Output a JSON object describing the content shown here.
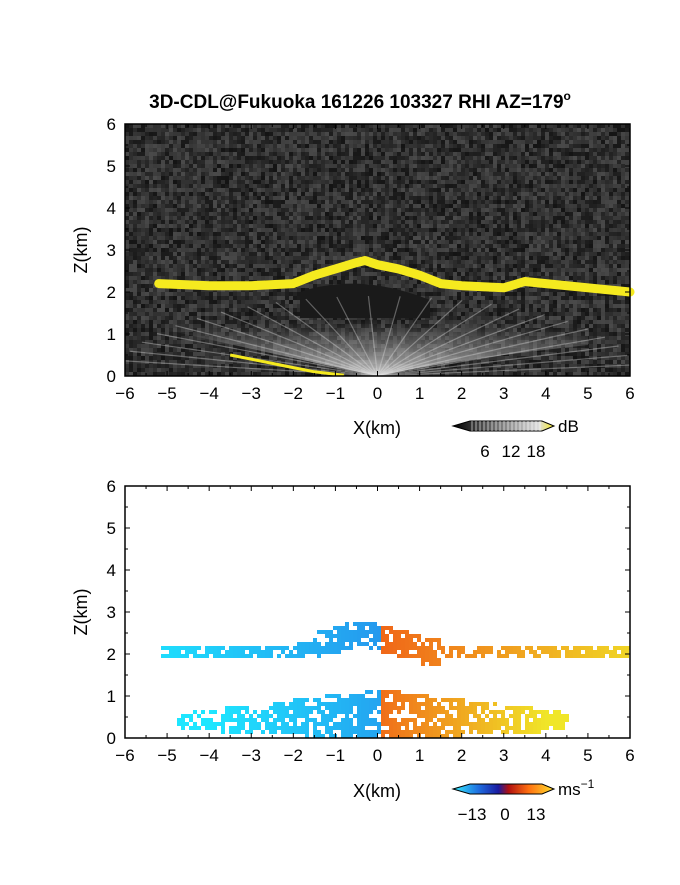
{
  "figure": {
    "title": "3D-CDL@Fukuoka 161226 103327 RHI AZ=179",
    "title_sup": "o"
  },
  "chart_data": [
    {
      "type": "heatmap",
      "quantity": "reflectivity",
      "xlabel": "X(km)",
      "ylabel": "Z(km)",
      "xlim": [
        -6,
        6
      ],
      "ylim": [
        0,
        6
      ],
      "xticks": [
        "−6",
        "−5",
        "−4",
        "−3",
        "−2",
        "−1",
        "0",
        "1",
        "2",
        "3",
        "4",
        "5",
        "6"
      ],
      "yticks": [
        "0",
        "1",
        "2",
        "3",
        "4",
        "5",
        "6"
      ],
      "colorbar": {
        "unit": "dB",
        "ticks": [
          "6",
          "12",
          "18"
        ],
        "range": [
          0,
          20
        ]
      },
      "features": {
        "cloud_base_layer_km": [
          [
            -5.2,
            2.2
          ],
          [
            -4,
            2.15
          ],
          [
            -3,
            2.15
          ],
          [
            -2,
            2.2
          ],
          [
            -1.5,
            2.4
          ],
          [
            -1,
            2.55
          ],
          [
            -0.5,
            2.7
          ],
          [
            -0.3,
            2.75
          ],
          [
            0,
            2.65
          ],
          [
            0.5,
            2.55
          ],
          [
            1,
            2.4
          ],
          [
            1.5,
            2.2
          ],
          [
            2,
            2.15
          ],
          [
            3,
            2.1
          ],
          [
            3.5,
            2.25
          ],
          [
            4,
            2.2
          ],
          [
            5,
            2.1
          ],
          [
            6,
            2.0
          ]
        ],
        "ground_clutter_line_km": [
          [
            -3.5,
            0.5
          ],
          [
            -3,
            0.4
          ],
          [
            -2.5,
            0.3
          ],
          [
            -2,
            0.2
          ],
          [
            -1.5,
            0.1
          ],
          [
            -0.8,
            0.02
          ]
        ]
      }
    },
    {
      "type": "heatmap",
      "quantity": "radial velocity",
      "xlabel": "X(km)",
      "ylabel": "Z(km)",
      "xlim": [
        -6,
        6
      ],
      "ylim": [
        0,
        6
      ],
      "xticks": [
        "−6",
        "−5",
        "−4",
        "−3",
        "−2",
        "−1",
        "0",
        "1",
        "2",
        "3",
        "4",
        "5",
        "6"
      ],
      "yticks": [
        "0",
        "1",
        "2",
        "3",
        "4",
        "5",
        "6"
      ],
      "colorbar": {
        "unit": "ms",
        "unit_sup": "−1",
        "ticks": [
          "−13",
          "0",
          "13"
        ],
        "range": [
          -15,
          15
        ]
      },
      "features": {
        "upper_layer_km": {
          "x": [
            -5.2,
            6
          ],
          "z_center": 2.1
        },
        "lower_layer_km": {
          "x": [
            -4.8,
            4.5
          ],
          "z_center": 0.6
        }
      }
    }
  ],
  "colors": {
    "reflectivity_high": "#f5ea1f",
    "background_low": "#1f1f1f",
    "velocity_negative": "#1e7fe8",
    "velocity_positive": "#e8501e"
  }
}
